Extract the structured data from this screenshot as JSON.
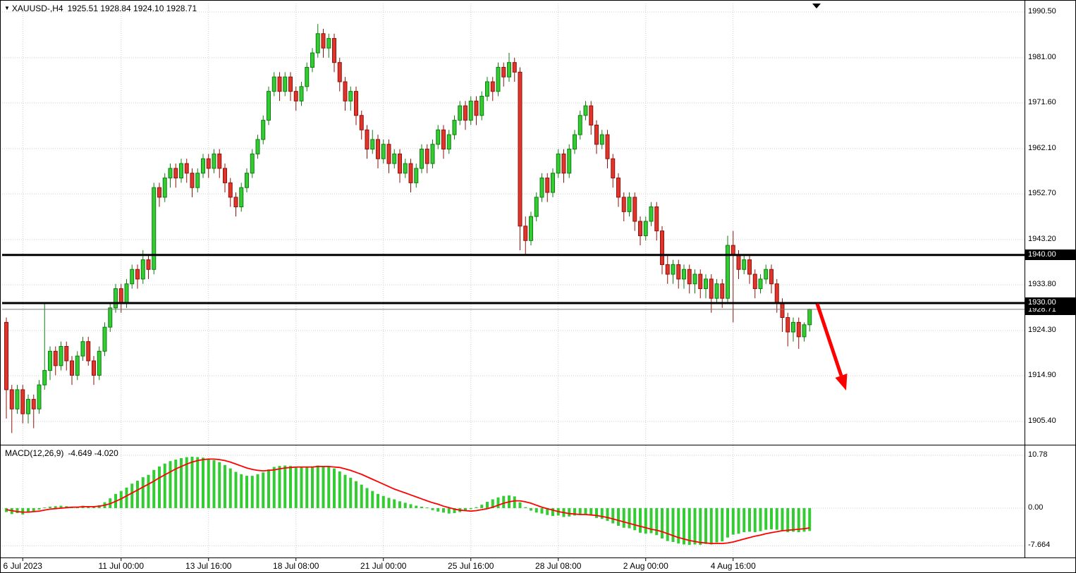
{
  "title": {
    "marker": "▼",
    "symbol_period": "XAUUSD-,H4",
    "ohlc_text": "1925.51 1928.84 1924.10 1928.71"
  },
  "macd_panel": {
    "label": "MACD(12,26,9)",
    "values_text": "-4.649 -4.020",
    "ticks": [
      {
        "text": "10.78",
        "value": 10.78
      },
      {
        "text": "0.00",
        "value": 0
      },
      {
        "text": "-7.664",
        "value": -7.664
      }
    ]
  },
  "price_axis": {
    "ticks": [
      {
        "text": "1990.50",
        "value": 1990.5
      },
      {
        "text": "1981.00",
        "value": 1981.0
      },
      {
        "text": "1971.60",
        "value": 1971.6
      },
      {
        "text": "1962.10",
        "value": 1962.1
      },
      {
        "text": "1952.70",
        "value": 1952.7
      },
      {
        "text": "1943.20",
        "value": 1943.2
      },
      {
        "text": "1933.80",
        "value": 1933.8
      },
      {
        "text": "1924.30",
        "value": 1924.3
      },
      {
        "text": "1914.90",
        "value": 1914.9
      },
      {
        "text": "1905.40",
        "value": 1905.4
      }
    ],
    "level_badges": [
      {
        "text": "1940.00",
        "value": 1940.0
      },
      {
        "text": "1930.00",
        "value": 1930.0
      }
    ],
    "current_price_badge": {
      "text": "1928.71",
      "value": 1928.71
    }
  },
  "time_axis": {
    "labels": [
      {
        "text": "6 Jul 2023",
        "index": 3
      },
      {
        "text": "11 Jul 00:00",
        "index": 21
      },
      {
        "text": "13 Jul 16:00",
        "index": 37
      },
      {
        "text": "18 Jul 08:00",
        "index": 53
      },
      {
        "text": "21 Jul 00:00",
        "index": 69
      },
      {
        "text": "25 Jul 16:00",
        "index": 85
      },
      {
        "text": "28 Jul 08:00",
        "index": 101
      },
      {
        "text": "2 Aug 00:00",
        "index": 117
      },
      {
        "text": "4 Aug 16:00",
        "index": 133
      }
    ]
  },
  "chart_data": {
    "type": "candlestick",
    "symbol": "XAUUSD-",
    "timeframe": "H4",
    "current_price": 1928.71,
    "levels": [
      1940.0,
      1930.0
    ],
    "indicator": {
      "name": "MACD",
      "params": [
        12,
        26,
        9
      ],
      "macd_last": -4.649,
      "signal_last": -4.02
    },
    "colors": {
      "bull": "#33cc33",
      "bull_border": "#0f7d0f",
      "bear": "#e0352b",
      "bear_border": "#8f120b",
      "macd_hist": "#33cc33",
      "macd_signal": "#ff0000",
      "level_line": "#000000",
      "arrow": "#ff0000",
      "grid": "#cfcfcf",
      "current_price_line": "#7a7a7a"
    },
    "candles": [
      [
        1926,
        1927,
        1906,
        1912
      ],
      [
        1912,
        1913,
        1903,
        1908
      ],
      [
        1908,
        1913,
        1907,
        1912
      ],
      [
        1912,
        1913,
        1905,
        1907
      ],
      [
        1907,
        1911,
        1905,
        1910
      ],
      [
        1910,
        1911,
        1904,
        1908
      ],
      [
        1908,
        1914,
        1907,
        1913
      ],
      [
        1913,
        1930,
        1912,
        1916
      ],
      [
        1916,
        1921,
        1914,
        1920
      ],
      [
        1920,
        1921,
        1915,
        1917
      ],
      [
        1917,
        1922,
        1916,
        1921
      ],
      [
        1921,
        1922,
        1916,
        1918
      ],
      [
        1918,
        1919,
        1913,
        1915
      ],
      [
        1915,
        1920,
        1914,
        1919
      ],
      [
        1919,
        1923,
        1918,
        1922
      ],
      [
        1922,
        1923,
        1917,
        1918
      ],
      [
        1918,
        1919,
        1913,
        1915
      ],
      [
        1915,
        1921,
        1914,
        1920
      ],
      [
        1920,
        1926,
        1919,
        1925
      ],
      [
        1925,
        1930,
        1924,
        1929
      ],
      [
        1929,
        1934,
        1928,
        1933
      ],
      [
        1933,
        1934,
        1928,
        1930
      ],
      [
        1930,
        1935,
        1929,
        1934
      ],
      [
        1934,
        1938,
        1933,
        1937
      ],
      [
        1937,
        1938,
        1933,
        1935
      ],
      [
        1935,
        1941,
        1934,
        1939
      ],
      [
        1939,
        1940,
        1935,
        1937
      ],
      [
        1937,
        1955,
        1936,
        1954
      ],
      [
        1954,
        1955,
        1950,
        1952
      ],
      [
        1952,
        1957,
        1951,
        1956
      ],
      [
        1956,
        1959,
        1954,
        1958
      ],
      [
        1958,
        1959,
        1954,
        1956
      ],
      [
        1956,
        1960,
        1955,
        1959
      ],
      [
        1959,
        1960,
        1955,
        1957
      ],
      [
        1957,
        1958,
        1952,
        1954
      ],
      [
        1954,
        1958,
        1953,
        1957
      ],
      [
        1957,
        1961,
        1956,
        1960
      ],
      [
        1960,
        1961,
        1956,
        1958
      ],
      [
        1958,
        1962,
        1957,
        1961
      ],
      [
        1961,
        1962,
        1956,
        1958
      ],
      [
        1958,
        1959,
        1953,
        1955
      ],
      [
        1955,
        1956,
        1950,
        1952
      ],
      [
        1952,
        1953,
        1948,
        1950
      ],
      [
        1950,
        1955,
        1949,
        1954
      ],
      [
        1954,
        1958,
        1953,
        1957
      ],
      [
        1957,
        1962,
        1956,
        1961
      ],
      [
        1961,
        1965,
        1960,
        1964
      ],
      [
        1964,
        1969,
        1963,
        1968
      ],
      [
        1968,
        1975,
        1967,
        1974
      ],
      [
        1974,
        1978,
        1973,
        1977
      ],
      [
        1977,
        1978,
        1972,
        1974
      ],
      [
        1974,
        1978,
        1973,
        1977
      ],
      [
        1977,
        1978,
        1972,
        1974
      ],
      [
        1974,
        1975,
        1970,
        1972
      ],
      [
        1972,
        1976,
        1971,
        1975
      ],
      [
        1975,
        1980,
        1974,
        1979
      ],
      [
        1979,
        1983,
        1978,
        1982
      ],
      [
        1982,
        1988,
        1981,
        1986
      ],
      [
        1986,
        1987,
        1981,
        1983
      ],
      [
        1983,
        1986,
        1981,
        1985
      ],
      [
        1985,
        1986,
        1978,
        1980
      ],
      [
        1980,
        1981,
        1974,
        1976
      ],
      [
        1976,
        1977,
        1970,
        1972
      ],
      [
        1972,
        1975,
        1970,
        1974
      ],
      [
        1974,
        1975,
        1967,
        1969
      ],
      [
        1969,
        1970,
        1964,
        1966
      ],
      [
        1966,
        1967,
        1960,
        1962
      ],
      [
        1962,
        1966,
        1961,
        1964
      ],
      [
        1964,
        1965,
        1958,
        1960
      ],
      [
        1960,
        1964,
        1959,
        1963
      ],
      [
        1963,
        1964,
        1957,
        1959
      ],
      [
        1959,
        1962,
        1958,
        1961
      ],
      [
        1961,
        1962,
        1955,
        1957
      ],
      [
        1957,
        1960,
        1956,
        1959
      ],
      [
        1959,
        1960,
        1953,
        1955
      ],
      [
        1955,
        1959,
        1954,
        1958
      ],
      [
        1958,
        1963,
        1957,
        1962
      ],
      [
        1962,
        1963,
        1957,
        1959
      ],
      [
        1959,
        1964,
        1958,
        1963
      ],
      [
        1963,
        1967,
        1962,
        1966
      ],
      [
        1966,
        1967,
        1960,
        1962
      ],
      [
        1962,
        1966,
        1961,
        1965
      ],
      [
        1965,
        1969,
        1964,
        1968
      ],
      [
        1968,
        1972,
        1967,
        1971
      ],
      [
        1971,
        1972,
        1966,
        1968
      ],
      [
        1968,
        1973,
        1967,
        1972
      ],
      [
        1972,
        1973,
        1967,
        1969
      ],
      [
        1969,
        1974,
        1968,
        1973
      ],
      [
        1973,
        1977,
        1972,
        1976
      ],
      [
        1976,
        1977,
        1972,
        1974
      ],
      [
        1974,
        1980,
        1973,
        1979
      ],
      [
        1979,
        1980,
        1975,
        1977
      ],
      [
        1977,
        1982,
        1976,
        1980
      ],
      [
        1980,
        1981,
        1976,
        1978
      ],
      [
        1978,
        1979,
        1941,
        1946
      ],
      [
        1946,
        1948,
        1940,
        1943
      ],
      [
        1943,
        1949,
        1942,
        1948
      ],
      [
        1948,
        1953,
        1947,
        1952
      ],
      [
        1952,
        1957,
        1951,
        1956
      ],
      [
        1956,
        1957,
        1951,
        1953
      ],
      [
        1953,
        1958,
        1952,
        1957
      ],
      [
        1957,
        1962,
        1956,
        1961
      ],
      [
        1961,
        1962,
        1955,
        1957
      ],
      [
        1957,
        1963,
        1956,
        1962
      ],
      [
        1962,
        1966,
        1961,
        1965
      ],
      [
        1965,
        1970,
        1964,
        1969
      ],
      [
        1969,
        1972,
        1968,
        1971
      ],
      [
        1971,
        1972,
        1965,
        1967
      ],
      [
        1967,
        1968,
        1961,
        1963
      ],
      [
        1963,
        1966,
        1962,
        1965
      ],
      [
        1965,
        1966,
        1958,
        1960
      ],
      [
        1960,
        1961,
        1954,
        1956
      ],
      [
        1956,
        1957,
        1950,
        1952
      ],
      [
        1952,
        1953,
        1947,
        1949
      ],
      [
        1949,
        1953,
        1948,
        1952
      ],
      [
        1952,
        1953,
        1945,
        1947
      ],
      [
        1947,
        1948,
        1942,
        1944
      ],
      [
        1944,
        1948,
        1943,
        1947
      ],
      [
        1947,
        1951,
        1946,
        1950
      ],
      [
        1950,
        1951,
        1943,
        1945
      ],
      [
        1945,
        1946,
        1936,
        1938
      ],
      [
        1938,
        1940,
        1934,
        1936
      ],
      [
        1936,
        1939,
        1934,
        1938
      ],
      [
        1938,
        1939,
        1933,
        1935
      ],
      [
        1935,
        1938,
        1933,
        1937
      ],
      [
        1937,
        1938,
        1932,
        1934
      ],
      [
        1934,
        1937,
        1932,
        1936
      ],
      [
        1936,
        1937,
        1931,
        1933
      ],
      [
        1933,
        1936,
        1931,
        1935
      ],
      [
        1935,
        1936,
        1928,
        1931
      ],
      [
        1931,
        1935,
        1930,
        1934
      ],
      [
        1934,
        1935,
        1929,
        1931
      ],
      [
        1931,
        1944,
        1930,
        1942
      ],
      [
        1942,
        1945,
        1926,
        1940
      ],
      [
        1940,
        1941,
        1935,
        1937
      ],
      [
        1937,
        1940,
        1936,
        1939
      ],
      [
        1939,
        1940,
        1934,
        1936
      ],
      [
        1936,
        1937,
        1931,
        1933
      ],
      [
        1933,
        1936,
        1932,
        1935
      ],
      [
        1935,
        1938,
        1934,
        1937
      ],
      [
        1937,
        1938,
        1932,
        1934
      ],
      [
        1934,
        1935,
        1928,
        1930
      ],
      [
        1930,
        1931,
        1924,
        1927
      ],
      [
        1927,
        1928,
        1921,
        1924
      ],
      [
        1924,
        1927,
        1922,
        1926
      ],
      [
        1926,
        1927,
        1920.5,
        1923
      ],
      [
        1923,
        1926,
        1922,
        1925.5
      ],
      [
        1925.5,
        1928.84,
        1924.1,
        1928.71
      ]
    ],
    "macd_hist": [
      -0.8,
      -1.2,
      -1.0,
      -1.3,
      -0.9,
      -0.6,
      -0.3,
      0.0,
      0.3,
      0.4,
      0.5,
      0.4,
      0.2,
      0.3,
      0.5,
      0.4,
      0.3,
      0.6,
      1.2,
      2.0,
      2.9,
      3.5,
      4.2,
      5.0,
      5.6,
      6.3,
      6.8,
      7.8,
      8.5,
      9.1,
      9.6,
      9.9,
      10.2,
      10.4,
      10.5,
      10.4,
      10.3,
      10.1,
      9.8,
      9.4,
      8.8,
      8.1,
      7.4,
      6.9,
      6.6,
      6.6,
      6.9,
      7.3,
      7.9,
      8.4,
      8.6,
      8.7,
      8.6,
      8.4,
      8.3,
      8.4,
      8.5,
      8.7,
      8.6,
      8.5,
      8.1,
      7.5,
      6.8,
      6.2,
      5.5,
      4.8,
      4.1,
      3.5,
      2.9,
      2.5,
      2.1,
      1.8,
      1.4,
      1.1,
      0.8,
      0.5,
      0.3,
      0.0,
      -0.4,
      -0.7,
      -0.9,
      -1.1,
      -1.0,
      -0.8,
      -0.5,
      -0.2,
      0.2,
      0.7,
      1.3,
      1.8,
      2.2,
      2.5,
      2.6,
      2.4,
      1.2,
      0.2,
      -0.5,
      -0.9,
      -1.1,
      -1.4,
      -1.6,
      -1.5,
      -1.8,
      -1.7,
      -1.5,
      -1.3,
      -1.2,
      -1.5,
      -2.0,
      -2.2,
      -2.6,
      -3.1,
      -3.6,
      -4.0,
      -4.1,
      -4.5,
      -5.0,
      -5.2,
      -5.1,
      -5.5,
      -6.2,
      -6.7,
      -6.9,
      -7.2,
      -7.4,
      -7.5,
      -7.4,
      -7.5,
      -7.3,
      -7.4,
      -7.0,
      -6.8,
      -6.0,
      -5.4,
      -5.2,
      -4.9,
      -4.8,
      -4.9,
      -4.7,
      -4.4,
      -4.3,
      -4.4,
      -4.6,
      -4.9,
      -4.8,
      -4.9,
      -4.8,
      -4.649
    ],
    "macd_signal": [
      -0.3,
      -0.5,
      -0.7,
      -0.8,
      -0.8,
      -0.7,
      -0.6,
      -0.4,
      -0.2,
      -0.1,
      0.0,
      0.1,
      0.2,
      0.2,
      0.3,
      0.3,
      0.3,
      0.4,
      0.6,
      0.9,
      1.4,
      1.9,
      2.5,
      3.1,
      3.7,
      4.3,
      4.9,
      5.5,
      6.2,
      6.8,
      7.4,
      8.0,
      8.5,
      9.0,
      9.4,
      9.7,
      9.9,
      10.0,
      10.0,
      9.9,
      9.7,
      9.4,
      9.0,
      8.6,
      8.2,
      7.9,
      7.7,
      7.6,
      7.7,
      7.8,
      8.0,
      8.2,
      8.3,
      8.4,
      8.4,
      8.4,
      8.4,
      8.5,
      8.5,
      8.5,
      8.4,
      8.3,
      8.0,
      7.7,
      7.3,
      6.9,
      6.4,
      5.9,
      5.4,
      4.9,
      4.4,
      3.9,
      3.5,
      3.1,
      2.7,
      2.3,
      1.9,
      1.5,
      1.1,
      0.8,
      0.4,
      0.1,
      -0.2,
      -0.4,
      -0.5,
      -0.6,
      -0.5,
      -0.3,
      -0.1,
      0.2,
      0.6,
      1.0,
      1.3,
      1.5,
      1.5,
      1.3,
      1.0,
      0.6,
      0.2,
      -0.1,
      -0.4,
      -0.7,
      -0.9,
      -1.1,
      -1.2,
      -1.3,
      -1.3,
      -1.4,
      -1.5,
      -1.7,
      -1.9,
      -2.2,
      -2.5,
      -2.8,
      -3.1,
      -3.4,
      -3.7,
      -4.0,
      -4.3,
      -4.5,
      -4.8,
      -5.2,
      -5.6,
      -6.0,
      -6.3,
      -6.6,
      -6.8,
      -7.0,
      -7.1,
      -7.2,
      -7.2,
      -7.2,
      -7.1,
      -6.9,
      -6.6,
      -6.3,
      -6.0,
      -5.7,
      -5.5,
      -5.2,
      -5.0,
      -4.8,
      -4.6,
      -4.5,
      -4.4,
      -4.3,
      -4.2,
      -4.02
    ],
    "annotations": {
      "arrow": {
        "description": "red arrow pointing down-right after price broke below 1930 level",
        "color": "#ff0000"
      }
    }
  }
}
